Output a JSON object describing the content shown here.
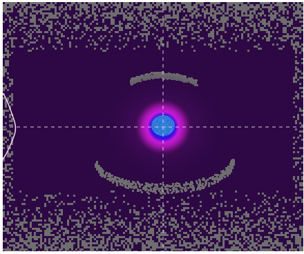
{
  "viewer": {
    "background_color": "#2d0844",
    "noise_color": "#6e6e6e",
    "crosshair_color": "#d9c9e8",
    "profile_curve_color": "#f3dcef",
    "spot_colors": {
      "core": "#2a7ad8",
      "inner": "#1b22e8",
      "ring": "#c81ad6",
      "halo": "#6a1078"
    }
  }
}
